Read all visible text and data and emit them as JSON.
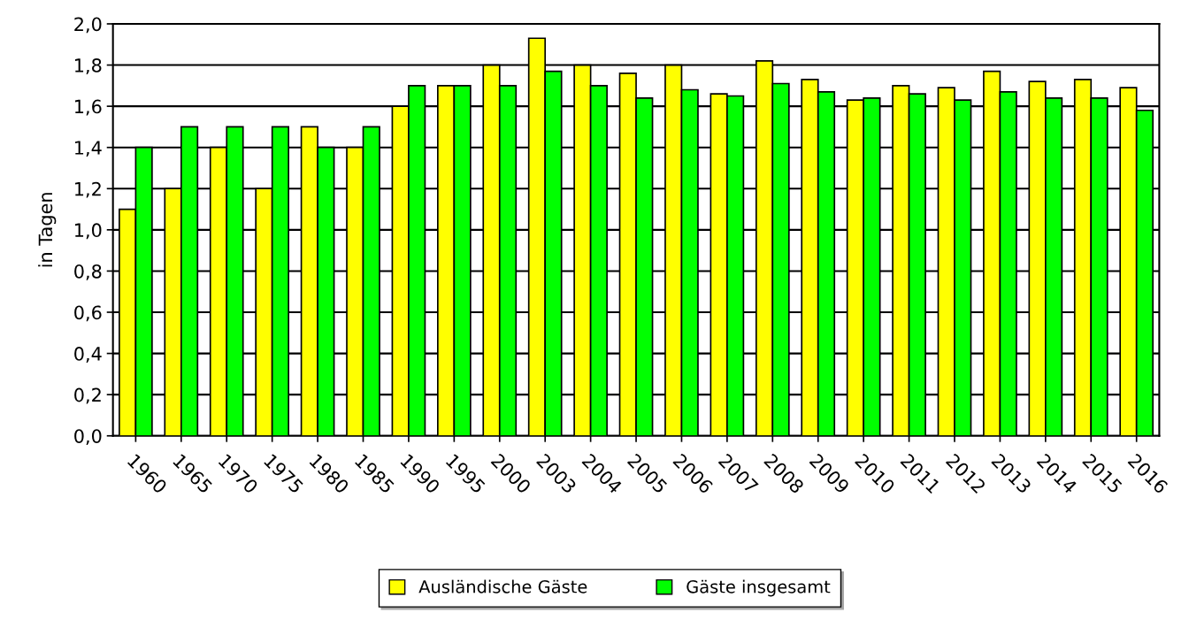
{
  "chart_data": {
    "type": "bar",
    "ylabel": "in Tagen",
    "categories": [
      "1960",
      "1965",
      "1970",
      "1975",
      "1980",
      "1985",
      "1990",
      "1995",
      "2000",
      "2003",
      "2004",
      "2005",
      "2006",
      "2007",
      "2008",
      "2009",
      "2010",
      "2011",
      "2012",
      "2013",
      "2014",
      "2015",
      "2016"
    ],
    "series": [
      {
        "name": "Ausländische Gäste",
        "color": "#ffff00",
        "values": [
          1.1,
          1.2,
          1.4,
          1.2,
          1.5,
          1.4,
          1.6,
          1.7,
          1.8,
          1.93,
          1.8,
          1.76,
          1.8,
          1.66,
          1.82,
          1.73,
          1.63,
          1.7,
          1.69,
          1.77,
          1.72,
          1.73,
          1.69
        ]
      },
      {
        "name": "Gäste insgesamt",
        "color": "#00ff00",
        "values": [
          1.4,
          1.5,
          1.5,
          1.5,
          1.4,
          1.5,
          1.7,
          1.7,
          1.7,
          1.77,
          1.7,
          1.64,
          1.68,
          1.65,
          1.71,
          1.67,
          1.64,
          1.66,
          1.63,
          1.67,
          1.64,
          1.64,
          1.58
        ]
      }
    ],
    "ylim": [
      0,
      2
    ],
    "yticks": [
      {
        "value": 0,
        "label": "0,0"
      },
      {
        "value": 0.2,
        "label": "0,2"
      },
      {
        "value": 0.4,
        "label": "0,4"
      },
      {
        "value": 0.6,
        "label": "0,6"
      },
      {
        "value": 0.8,
        "label": "0,8"
      },
      {
        "value": 1.0,
        "label": "1,0"
      },
      {
        "value": 1.2,
        "label": "1,2"
      },
      {
        "value": 1.4,
        "label": "1,4"
      },
      {
        "value": 1.6,
        "label": "1,6"
      },
      {
        "value": 1.8,
        "label": "1,8"
      },
      {
        "value": 2.0,
        "label": "2,0"
      }
    ],
    "grid": "y",
    "legend": "bottom"
  }
}
